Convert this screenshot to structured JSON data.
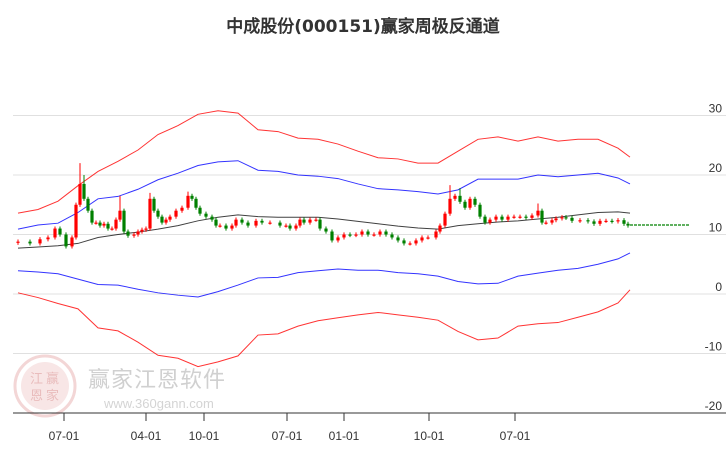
{
  "chart_data": {
    "type": "candlestick",
    "title": "中成股份(000151)赢家周极反通道",
    "xlabel": "",
    "ylabel": "",
    "ylim": [
      -20,
      34
    ],
    "xlim": [
      -0.25,
      169
    ],
    "grid": true,
    "yticks": [
      30,
      20,
      10,
      0,
      -10,
      -20
    ],
    "xticks": [
      {
        "t": 12.5,
        "label": "07-01"
      },
      {
        "t": 33,
        "label": "04-01"
      },
      {
        "t": 47.5,
        "label": "10-01"
      },
      {
        "t": 68.25,
        "label": "07-01"
      },
      {
        "t": 82.5,
        "label": "01-01"
      },
      {
        "t": 103.75,
        "label": "10-01"
      },
      {
        "t": 125.25,
        "label": "07-01"
      }
    ],
    "line_t": [
      1,
      6,
      11,
      16,
      21,
      26,
      31,
      36,
      41,
      46,
      51,
      56,
      61,
      66,
      71,
      76,
      81,
      86,
      91,
      96,
      101,
      106,
      111,
      116,
      121,
      126,
      131,
      136,
      141,
      146,
      151,
      154
    ],
    "series": [
      {
        "name": "upper-outer",
        "color": "#ff0000",
        "values": [
          13.6,
          14.2,
          15.6,
          18.2,
          20.6,
          22.3,
          24.2,
          26.8,
          28.3,
          30.2,
          30.8,
          30.4,
          27.6,
          27.3,
          26.2,
          26.0,
          25.2,
          24.0,
          22.9,
          22.7,
          22.0,
          22.0,
          24.0,
          26.0,
          26.4,
          25.7,
          26.4,
          25.7,
          26.0,
          26.0,
          24.5,
          23.0
        ]
      },
      {
        "name": "upper-inner",
        "color": "#0000ff",
        "values": [
          10.9,
          11.6,
          11.9,
          13.7,
          16.0,
          16.4,
          17.6,
          19.2,
          20.3,
          21.6,
          22.2,
          22.4,
          20.8,
          20.6,
          20.0,
          19.8,
          19.4,
          18.5,
          17.7,
          17.5,
          17.2,
          16.8,
          17.5,
          19.3,
          19.3,
          19.3,
          20.0,
          19.7,
          20.0,
          20.3,
          19.5,
          18.5
        ]
      },
      {
        "name": "middle",
        "color": "#000000",
        "values": [
          7.7,
          7.9,
          8.1,
          8.5,
          9.5,
          10.0,
          10.4,
          10.9,
          11.5,
          12.3,
          12.9,
          13.3,
          13.0,
          12.9,
          12.9,
          12.9,
          12.6,
          12.2,
          11.8,
          11.4,
          11.1,
          10.9,
          11.5,
          11.8,
          12.1,
          12.3,
          12.6,
          12.9,
          13.3,
          13.7,
          13.8,
          13.6
        ]
      },
      {
        "name": "lower-inner",
        "color": "#0000ff",
        "values": [
          3.9,
          3.7,
          3.4,
          2.5,
          1.6,
          1.5,
          0.8,
          0.2,
          -0.2,
          -0.5,
          0.4,
          1.5,
          2.7,
          2.8,
          3.6,
          3.9,
          4.2,
          4.0,
          4.0,
          3.6,
          3.4,
          3.0,
          2.1,
          1.7,
          1.8,
          3.0,
          3.5,
          4.0,
          4.3,
          5.0,
          5.9,
          6.9
        ]
      },
      {
        "name": "lower-outer",
        "color": "#ff0000",
        "values": [
          0.2,
          -0.6,
          -1.6,
          -2.5,
          -5.7,
          -6.2,
          -8.1,
          -10.3,
          -10.8,
          -12.2,
          -11.4,
          -10.4,
          -6.9,
          -6.7,
          -5.4,
          -4.5,
          -4.0,
          -3.5,
          -3.1,
          -3.5,
          -3.9,
          -4.4,
          -6.3,
          -7.7,
          -7.4,
          -5.4,
          -5.0,
          -4.8,
          -3.9,
          -3.0,
          -1.5,
          0.7
        ]
      }
    ],
    "forecast": {
      "color": "#008000",
      "t_start": 154,
      "t_end": 169,
      "value": 11.6
    },
    "candles": {
      "open_first": 8.6,
      "up_color": "#ff0000",
      "down_color": "#008000",
      "t": [
        1,
        4,
        6.5,
        8.5,
        10.25,
        11.5,
        13,
        14.5,
        15.5,
        16.5,
        17.5,
        18.5,
        19.5,
        20.5,
        21.5,
        22.5,
        23.5,
        24.5,
        25.5,
        26.5,
        27.5,
        28.5,
        30,
        31,
        32,
        33,
        34,
        35,
        36,
        37,
        38,
        39,
        40.5,
        42,
        43.5,
        44.5,
        45.5,
        46.5,
        48,
        49.5,
        50.5,
        51.5,
        53,
        54.5,
        55.5,
        57,
        58.5,
        60.5,
        62,
        64,
        66.5,
        68,
        69,
        70.5,
        71.5,
        72.5,
        74,
        75.5,
        76.5,
        78,
        79.5,
        81,
        82.5,
        84,
        85.5,
        87,
        88.5,
        90,
        91.5,
        93,
        94.5,
        96,
        97.5,
        99,
        100.5,
        102,
        103.5,
        105.5,
        106.5,
        107.75,
        109,
        110.25,
        111.5,
        112.75,
        114,
        115.25,
        116.5,
        117.75,
        119,
        120.5,
        122,
        123.5,
        125,
        126.5,
        128,
        129.5,
        131,
        132,
        133,
        134.5,
        135.5,
        137,
        138,
        139.5,
        141.5,
        143.5,
        145,
        146.5,
        148,
        149.5,
        151,
        152.5,
        153.5
      ],
      "close": [
        8.8,
        8.5,
        9.2,
        9.5,
        11.0,
        10.0,
        8.0,
        9.5,
        15.0,
        18.5,
        16.0,
        14.0,
        12.0,
        12.0,
        11.5,
        11.8,
        11.0,
        11.0,
        12.5,
        14.0,
        10.5,
        9.8,
        10.0,
        10.5,
        10.8,
        11.0,
        16.0,
        14.0,
        13.0,
        12.0,
        12.5,
        13.0,
        14.0,
        14.5,
        16.5,
        16.0,
        14.5,
        13.5,
        13.0,
        12.5,
        11.5,
        11.5,
        11.0,
        11.5,
        12.5,
        12.0,
        11.5,
        12.3,
        12.0,
        12.0,
        11.5,
        11.5,
        11.0,
        11.5,
        12.5,
        12.0,
        12.5,
        12.5,
        11.0,
        10.5,
        9.0,
        9.5,
        10.0,
        9.9,
        10.0,
        10.5,
        10.0,
        10.0,
        10.5,
        10.0,
        9.5,
        9.0,
        8.5,
        8.5,
        9.0,
        9.5,
        9.5,
        10.5,
        11.5,
        13.5,
        16.0,
        16.5,
        15.5,
        14.5,
        16.0,
        15.0,
        13.0,
        12.0,
        12.5,
        13.0,
        12.5,
        13.0,
        13.0,
        13.0,
        12.8,
        13.2,
        14.0,
        12.0,
        12.0,
        12.4,
        12.7,
        12.9,
        12.8,
        12.3,
        12.4,
        12.2,
        11.8,
        12.3,
        12.3,
        12.2,
        12.4,
        11.8,
        11.5
      ],
      "high_overrides": {
        "16.5": 22.0,
        "17.5": 20.0,
        "26.5": 16.5,
        "34": 17.0,
        "43.5": 17.2,
        "109": 18.3,
        "111.5": 17.8,
        "131": 15.2
      }
    }
  },
  "watermark": {
    "brand": "赢家江恩软件",
    "url": "www.360gann.com",
    "seal": [
      "江",
      "赢",
      "恩",
      "家"
    ]
  }
}
